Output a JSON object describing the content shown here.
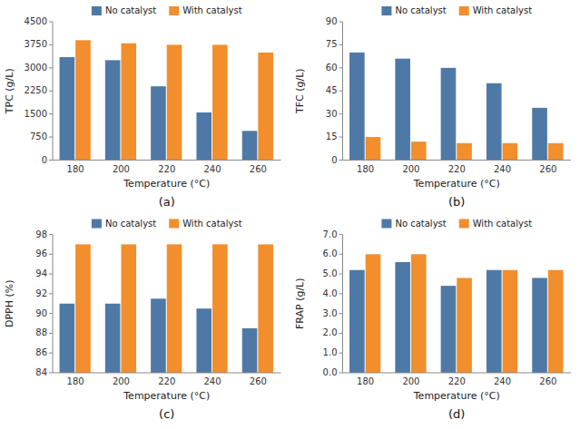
{
  "chart_data": [
    {
      "type": "bar",
      "title": "(a)",
      "x_label": "Temperature (°C)",
      "y_label": "TPC (g/L)",
      "categories": [
        "180",
        "200",
        "220",
        "240",
        "260"
      ],
      "series": [
        {
          "name": "No catalyst",
          "color": "#4e79a7",
          "values": [
            3350,
            3250,
            2400,
            1550,
            950
          ]
        },
        {
          "name": "With catalyst",
          "color": "#f28e2b",
          "values": [
            3900,
            3800,
            3750,
            3750,
            3500
          ]
        }
      ],
      "ylim": [
        0,
        4500
      ],
      "yticks": [
        0,
        750,
        1500,
        2250,
        3000,
        3750,
        4500
      ],
      "grid": false,
      "legend": "top"
    },
    {
      "type": "bar",
      "title": "(b)",
      "x_label": "Temperature (°C)",
      "y_label": "TFC (g/L)",
      "categories": [
        "180",
        "200",
        "220",
        "240",
        "260"
      ],
      "series": [
        {
          "name": "No catalyst",
          "color": "#4e79a7",
          "values": [
            70,
            66,
            60,
            50,
            34
          ]
        },
        {
          "name": "With catalyst",
          "color": "#f28e2b",
          "values": [
            15,
            12,
            11,
            11,
            11
          ]
        }
      ],
      "ylim": [
        0,
        90
      ],
      "yticks": [
        0,
        15,
        30,
        45,
        60,
        75,
        90
      ],
      "grid": false,
      "legend": "top"
    },
    {
      "type": "bar",
      "title": "(c)",
      "x_label": "Temperature (°C)",
      "y_label": "DPPH (%)",
      "categories": [
        "180",
        "200",
        "220",
        "240",
        "260"
      ],
      "series": [
        {
          "name": "No catalyst",
          "color": "#4e79a7",
          "values": [
            91.0,
            91.0,
            91.5,
            90.5,
            88.5
          ]
        },
        {
          "name": "With catalyst",
          "color": "#f28e2b",
          "values": [
            97.0,
            97.0,
            97.0,
            97.0,
            97.0
          ]
        }
      ],
      "ylim": [
        84,
        98
      ],
      "yticks": [
        84,
        86,
        88,
        90,
        92,
        94,
        96,
        98
      ],
      "grid": false,
      "legend": "top"
    },
    {
      "type": "bar",
      "title": "(d)",
      "x_label": "Temperature (°C)",
      "y_label": "FRAP (g/L)",
      "categories": [
        "180",
        "200",
        "220",
        "240",
        "260"
      ],
      "series": [
        {
          "name": "No catalyst",
          "color": "#4e79a7",
          "values": [
            5.2,
            5.6,
            4.4,
            5.2,
            4.8
          ]
        },
        {
          "name": "With catalyst",
          "color": "#f28e2b",
          "values": [
            6.0,
            6.0,
            4.8,
            5.2,
            5.2
          ]
        }
      ],
      "ylim": [
        0.0,
        7.0
      ],
      "yticks": [
        {
          "value": 0.0,
          "label": "0.0"
        },
        {
          "value": 1.0,
          "label": "1.0"
        },
        {
          "value": 2.0,
          "label": "2.0"
        },
        {
          "value": 3.0,
          "label": "3.0"
        },
        {
          "value": 4.0,
          "label": "4.0"
        },
        {
          "value": 5.0,
          "label": "5.0"
        },
        {
          "value": 6.0,
          "label": "6.0"
        },
        {
          "value": 7.0,
          "label": "7.0"
        }
      ],
      "grid": false,
      "legend": "top"
    }
  ]
}
